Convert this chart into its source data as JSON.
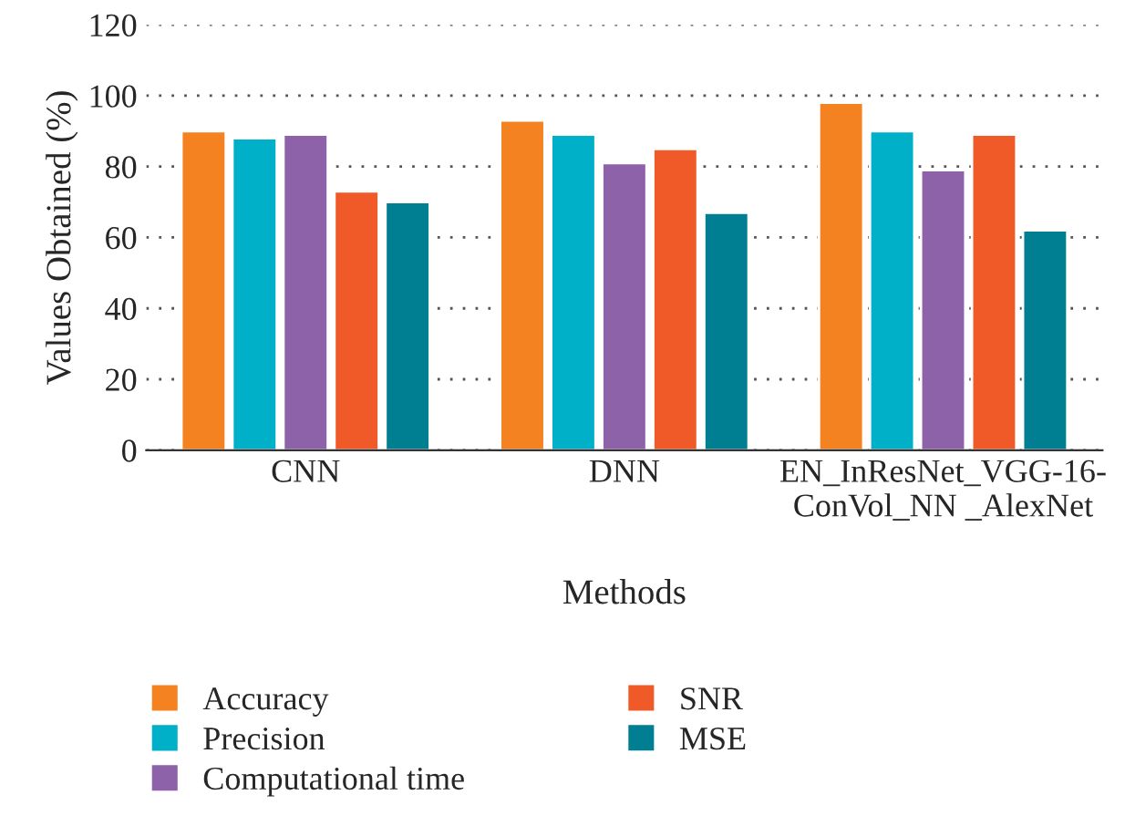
{
  "chart_data": {
    "type": "bar",
    "xlabel": "Methods",
    "ylabel": "Values Obtained (%)",
    "categories": [
      "CNN",
      "DNN",
      "EN_InResNet_VGG-16-\nConVol_NN _AlexNet"
    ],
    "series": [
      {
        "name": "Accuracy",
        "color": "#f58220",
        "values": [
          90,
          93,
          98
        ]
      },
      {
        "name": "Precision",
        "color": "#00b0c8",
        "values": [
          88,
          89,
          90
        ]
      },
      {
        "name": "Computational time",
        "color": "#8e62a8",
        "values": [
          89,
          81,
          79
        ]
      },
      {
        "name": "SNR",
        "color": "#f05a28",
        "values": [
          73,
          85,
          89
        ]
      },
      {
        "name": "MSE",
        "color": "#007f93",
        "values": [
          70,
          67,
          62
        ]
      }
    ],
    "ylim": [
      0,
      120
    ],
    "yticks": [
      0,
      20,
      40,
      60,
      80,
      100,
      120
    ],
    "grid": "y",
    "legend": "bottom"
  }
}
